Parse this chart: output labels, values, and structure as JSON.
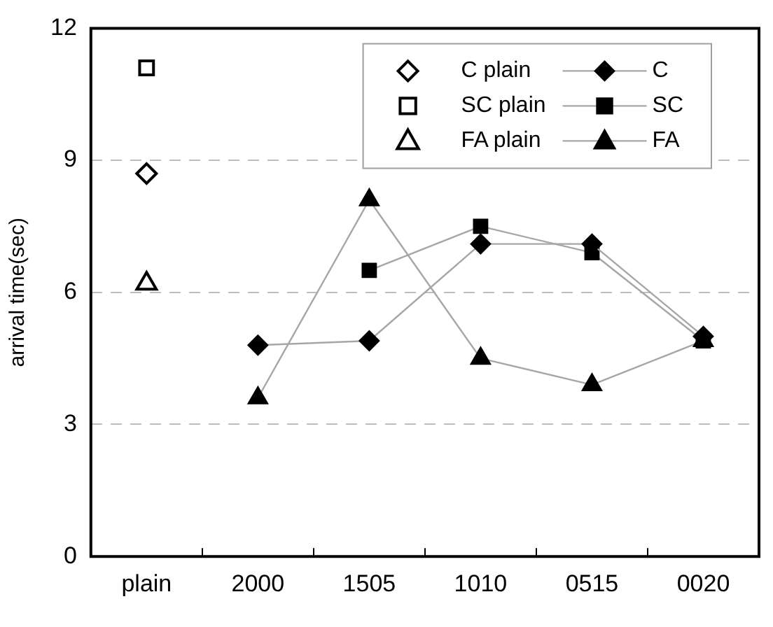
{
  "chart_data": {
    "type": "line",
    "ylabel": "arrival time(sec)",
    "categories": [
      "plain",
      "2000",
      "1505",
      "1010",
      "0515",
      "0020"
    ],
    "ylim": [
      0,
      12
    ],
    "yticks": [
      0,
      3,
      6,
      9,
      12
    ],
    "grid": "y",
    "legend": "top right",
    "series": [
      {
        "name": "C plain",
        "type": "scatter",
        "marker": "diamond",
        "color": "#000000",
        "x": [
          "plain"
        ],
        "values": [
          8.7
        ]
      },
      {
        "name": "SC plain",
        "type": "scatter",
        "marker": "square",
        "color": "#000000",
        "x": [
          "plain"
        ],
        "values": [
          11.1
        ]
      },
      {
        "name": "FA plain",
        "type": "scatter",
        "marker": "triangle",
        "color": "#000000",
        "x": [
          "plain"
        ],
        "values": [
          6.2
        ]
      },
      {
        "name": "C",
        "marker": "diamond",
        "color": "#000000",
        "values": [
          null,
          4.8,
          4.9,
          7.1,
          7.1,
          5.0
        ]
      },
      {
        "name": "SC",
        "marker": "square",
        "color": "#000000",
        "values": [
          null,
          null,
          6.5,
          7.5,
          6.9,
          4.9
        ]
      },
      {
        "name": "FA",
        "marker": "triangle",
        "color": "#000000",
        "values": [
          null,
          3.6,
          8.1,
          4.5,
          3.9,
          4.9
        ]
      }
    ]
  }
}
